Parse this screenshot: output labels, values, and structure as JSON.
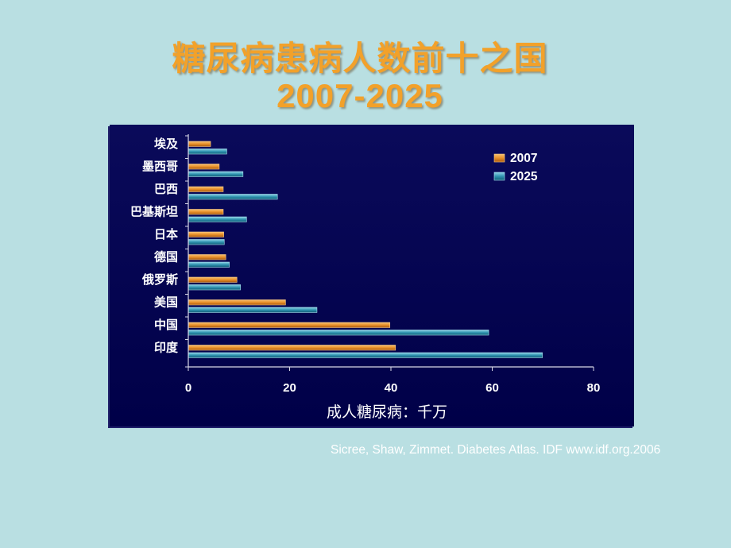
{
  "title": {
    "line1": "糖尿病患病人数前十之国",
    "line2": "2007-2025"
  },
  "source": "Sicree, Shaw, Zimmet. Diabetes Atlas. IDF www.idf.org.2006",
  "colors": {
    "background": "#b9dfe2",
    "title": "#f2a12a",
    "panel": "#000048",
    "series_2007": "#e8902a",
    "series_2025": "#2f93b0"
  },
  "chart_data": {
    "type": "bar",
    "orientation": "horizontal",
    "categories": [
      "埃及",
      "墨西哥",
      "巴西",
      "巴基斯坦",
      "日本",
      "德国",
      "俄罗斯",
      "美国",
      "中国",
      "印度"
    ],
    "series": [
      {
        "name": "2007",
        "values": [
          4.4,
          6.1,
          6.9,
          6.9,
          7.0,
          7.4,
          9.6,
          19.2,
          39.8,
          40.9
        ]
      },
      {
        "name": "2025",
        "values": [
          7.6,
          10.8,
          17.6,
          11.5,
          7.1,
          8.1,
          10.3,
          25.4,
          59.3,
          69.9
        ]
      }
    ],
    "xlabel": "成人糖尿病：千万",
    "ylabel": "",
    "xlim": [
      0,
      80
    ],
    "xticks": [
      0,
      20,
      40,
      60,
      80
    ],
    "legend_position": "top-right",
    "grid": false
  }
}
